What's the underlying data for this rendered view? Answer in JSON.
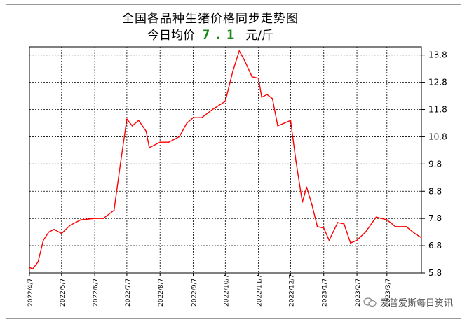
{
  "title": "全国各品种生猪价格同步走势图",
  "subtitle": {
    "prefix": "今日均价",
    "value": "7.1",
    "unit": "元/斤"
  },
  "watermark": "爱普爱斯每日资讯",
  "colors": {
    "line": "#ff0000",
    "value": "#1a8a1a",
    "grid": "#000000"
  },
  "chart_data": {
    "type": "line",
    "x_ticks": [
      "2022/4/7",
      "2022/5/7",
      "2022/6/7",
      "2022/7/7",
      "2022/8/7",
      "2022/9/7",
      "2022/10/7",
      "2022/11/7",
      "2022/12/7",
      "2023/1/7",
      "2023/2/7",
      "2023/3/7"
    ],
    "y_ticks": [
      "5.8",
      "6.8",
      "7.8",
      "8.8",
      "9.8",
      "10.8",
      "11.8",
      "12.8",
      "13.8"
    ],
    "ylim": [
      5.8,
      14.1
    ],
    "grid": true,
    "series": [
      {
        "x": [
          "2022/4/7",
          "2022/4/10",
          "2022/4/15",
          "2022/4/20",
          "2022/4/25",
          "2022/4/30",
          "2022/5/7",
          "2022/5/15",
          "2022/5/25",
          "2022/6/7",
          "2022/6/15",
          "2022/6/25",
          "2022/7/1",
          "2022/7/7",
          "2022/7/12",
          "2022/7/18",
          "2022/7/25",
          "2022/7/28",
          "2022/8/7",
          "2022/8/15",
          "2022/8/25",
          "2022/9/1",
          "2022/9/7",
          "2022/9/15",
          "2022/9/25",
          "2022/10/7",
          "2022/10/14",
          "2022/10/20",
          "2022/10/25",
          "2022/11/1",
          "2022/11/7",
          "2022/11/10",
          "2022/11/15",
          "2022/11/20",
          "2022/11/25",
          "2022/12/1",
          "2022/12/7",
          "2022/12/12",
          "2022/12/18",
          "2022/12/22",
          "2022/12/27",
          "2023/1/1",
          "2023/1/7",
          "2023/1/12",
          "2023/1/20",
          "2023/1/26",
          "2023/2/1",
          "2023/2/7",
          "2023/2/15",
          "2023/2/25",
          "2023/3/7",
          "2023/3/15",
          "2023/3/25",
          "2023/4/2",
          "2023/4/8"
        ],
        "values": [
          6.0,
          5.95,
          6.2,
          7.0,
          7.3,
          7.4,
          7.25,
          7.55,
          7.75,
          7.8,
          7.8,
          8.1,
          9.8,
          11.45,
          11.2,
          11.4,
          11.0,
          10.4,
          10.6,
          10.6,
          10.8,
          11.3,
          11.5,
          11.5,
          11.8,
          12.1,
          13.2,
          13.95,
          13.6,
          13.0,
          12.95,
          12.25,
          12.35,
          12.2,
          11.2,
          11.3,
          11.4,
          9.9,
          8.4,
          8.95,
          8.3,
          7.5,
          7.45,
          7.0,
          7.65,
          7.6,
          6.9,
          7.0,
          7.3,
          7.85,
          7.75,
          7.5,
          7.5,
          7.25,
          7.1
        ]
      }
    ]
  }
}
